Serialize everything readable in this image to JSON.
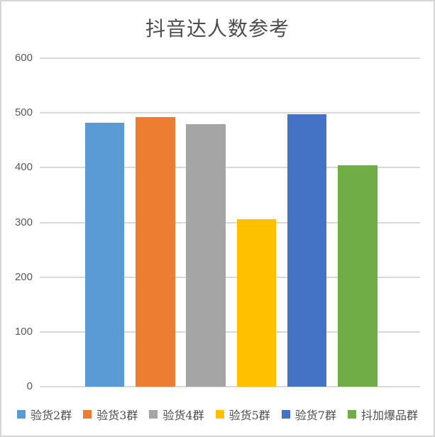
{
  "chart_data": {
    "type": "bar",
    "title": "抖音达人数参考",
    "categories": [
      "验货2群",
      "验货3群",
      "验货4群",
      "验货5群",
      "验货7群",
      "抖加爆品群"
    ],
    "values": [
      482,
      493,
      480,
      306,
      497,
      404
    ],
    "series_colors": [
      "#5B9BD5",
      "#ED7D31",
      "#A5A5A5",
      "#FFC000",
      "#4472C4",
      "#70AD47"
    ],
    "xlabel": "",
    "ylabel": "",
    "ylim": [
      0,
      600
    ],
    "yticks": [
      0,
      100,
      200,
      300,
      400,
      500,
      600
    ],
    "grid": true,
    "gridline_color": "#D9D9D9",
    "legend_position": "bottom",
    "title_color": "#4D4D4D",
    "axis_label_color": "#595959",
    "background_color": "#FFFFFF",
    "border_color": "#D6D6D6"
  }
}
